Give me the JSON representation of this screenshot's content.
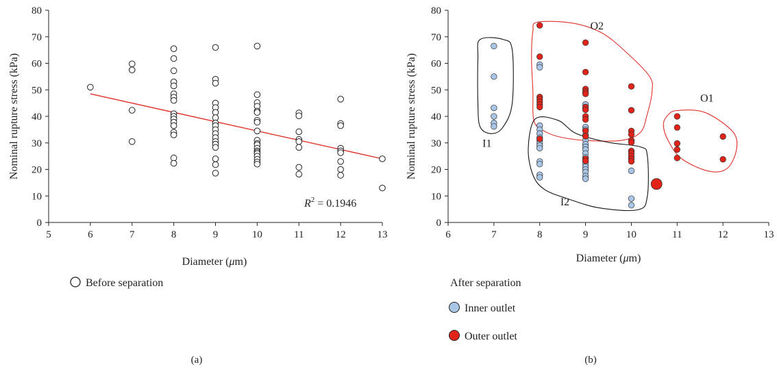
{
  "colors": {
    "axis": "#222222",
    "regression_line": "#e0302a",
    "inner_outlet": "#a9c6e6",
    "outer_outlet": "#e2231a",
    "red_region": "#e0302a",
    "black_region": "#111111"
  },
  "chart_data": [
    {
      "id": "a",
      "type": "scatter",
      "panel_label": "(a)",
      "xlabel_prefix": "Diameter (",
      "xlabel_mu": "μ",
      "xlabel_suffix": "m)",
      "ylabel": "Nominal rupture stress (kPa)",
      "xlim": [
        5,
        13
      ],
      "ylim": [
        0,
        80
      ],
      "xticks": [
        5,
        6,
        7,
        8,
        9,
        10,
        11,
        12,
        13
      ],
      "yticks": [
        0,
        10,
        20,
        30,
        40,
        50,
        60,
        70,
        80
      ],
      "legend": [
        "Before separation"
      ],
      "annotation_r2": {
        "symbol": "R",
        "exp": "2",
        "value": "= 0.1946"
      },
      "regression": {
        "x": [
          6,
          13
        ],
        "y": [
          48.5,
          24
        ]
      },
      "series": [
        {
          "name": "Before separation",
          "points": [
            [
              6,
              51
            ],
            [
              7,
              59.8
            ],
            [
              7,
              57.5
            ],
            [
              7,
              42.3
            ],
            [
              7,
              30.5
            ],
            [
              8,
              65.5
            ],
            [
              8,
              61.8
            ],
            [
              8,
              57.2
            ],
            [
              8,
              53
            ],
            [
              8,
              51.5
            ],
            [
              8,
              48.5
            ],
            [
              8,
              47.2
            ],
            [
              8,
              46
            ],
            [
              8,
              41
            ],
            [
              8,
              40
            ],
            [
              8,
              39
            ],
            [
              8,
              37.8
            ],
            [
              8,
              36.5
            ],
            [
              8,
              34
            ],
            [
              8,
              33
            ],
            [
              8,
              24.3
            ],
            [
              8,
              22.3
            ],
            [
              9,
              66
            ],
            [
              9,
              54
            ],
            [
              9,
              52.5
            ],
            [
              9,
              45
            ],
            [
              9,
              43.3
            ],
            [
              9,
              41.5
            ],
            [
              9,
              39.5
            ],
            [
              9,
              37.5
            ],
            [
              9,
              36.5
            ],
            [
              9,
              35
            ],
            [
              9,
              33.5
            ],
            [
              9,
              32
            ],
            [
              9,
              30.5
            ],
            [
              9,
              29.5
            ],
            [
              9,
              28.3
            ],
            [
              9,
              24
            ],
            [
              9,
              21.8
            ],
            [
              9,
              18.6
            ],
            [
              10,
              66.5
            ],
            [
              10,
              48.2
            ],
            [
              10,
              45.2
            ],
            [
              10,
              43.8
            ],
            [
              10,
              42
            ],
            [
              10,
              41.5
            ],
            [
              10,
              38.5
            ],
            [
              10,
              37.8
            ],
            [
              10,
              34.5
            ],
            [
              10,
              31
            ],
            [
              10,
              29.8
            ],
            [
              10,
              29.3
            ],
            [
              10,
              28
            ],
            [
              10,
              27
            ],
            [
              10,
              26.5
            ],
            [
              10,
              26
            ],
            [
              10,
              25
            ],
            [
              10,
              23.8
            ],
            [
              10,
              22.8
            ],
            [
              10,
              22
            ],
            [
              11,
              41.3
            ],
            [
              11,
              40.2
            ],
            [
              11,
              34.2
            ],
            [
              11,
              31.3
            ],
            [
              11,
              30.5
            ],
            [
              11,
              28.3
            ],
            [
              11,
              20.8
            ],
            [
              11,
              18.2
            ],
            [
              12,
              46.5
            ],
            [
              12,
              37.3
            ],
            [
              12,
              36.5
            ],
            [
              12,
              28
            ],
            [
              12,
              27
            ],
            [
              12,
              26.3
            ],
            [
              12,
              23
            ],
            [
              12,
              20
            ],
            [
              12,
              17.8
            ],
            [
              13,
              24
            ],
            [
              13,
              13
            ]
          ]
        }
      ]
    },
    {
      "id": "b",
      "type": "scatter",
      "panel_label": "(b)",
      "xlabel_prefix": "Diameter (",
      "xlabel_mu": "μ",
      "xlabel_suffix": "m)",
      "ylabel": "Nominal rupture stress (kPa)",
      "xlim": [
        6,
        13
      ],
      "ylim": [
        0,
        80
      ],
      "xticks": [
        6,
        7,
        8,
        9,
        10,
        11,
        12,
        13
      ],
      "yticks": [
        0,
        10,
        20,
        30,
        40,
        50,
        60,
        70,
        80
      ],
      "legend_title": "After separation",
      "legend": [
        "Inner outlet",
        "Outer outlet"
      ],
      "region_labels": [
        "O2",
        "O1",
        "I1",
        "I2"
      ],
      "series": [
        {
          "name": "Inner outlet",
          "points": [
            [
              7,
              66.5
            ],
            [
              7,
              55
            ],
            [
              7,
              43.2
            ],
            [
              7,
              40
            ],
            [
              7,
              37.5
            ],
            [
              7,
              36.2
            ],
            [
              8,
              59.5
            ],
            [
              8,
              58.5
            ],
            [
              8,
              36.5
            ],
            [
              8,
              35
            ],
            [
              8,
              33.5
            ],
            [
              8,
              32
            ],
            [
              8,
              31
            ],
            [
              8,
              30
            ],
            [
              8,
              29
            ],
            [
              8,
              28
            ],
            [
              8,
              23
            ],
            [
              8,
              22
            ],
            [
              8,
              18
            ],
            [
              8,
              17
            ],
            [
              9,
              44.5
            ],
            [
              9,
              43.5
            ],
            [
              9,
              42.5
            ],
            [
              9,
              36
            ],
            [
              9,
              35
            ],
            [
              9,
              33
            ],
            [
              9,
              31
            ],
            [
              9,
              29.5
            ],
            [
              9,
              28.5
            ],
            [
              9,
              27.5
            ],
            [
              9,
              26
            ],
            [
              9,
              24.5
            ],
            [
              9,
              23
            ],
            [
              9,
              22
            ],
            [
              9,
              21
            ],
            [
              9,
              20
            ],
            [
              9,
              19
            ],
            [
              9,
              17.5
            ],
            [
              9,
              16.5
            ],
            [
              10,
              19.5
            ],
            [
              10,
              9
            ],
            [
              10,
              6.5
            ]
          ]
        },
        {
          "name": "Outer outlet",
          "points": [
            [
              8,
              74.3
            ],
            [
              8,
              62.5
            ],
            [
              8,
              47.3
            ],
            [
              8,
              46.5
            ],
            [
              8,
              45.5
            ],
            [
              8,
              44.5
            ],
            [
              8,
              43.5
            ],
            [
              8,
              31.5
            ],
            [
              9,
              67.8
            ],
            [
              9,
              56.7
            ],
            [
              9,
              50.3
            ],
            [
              9,
              49.3
            ],
            [
              9,
              48.5
            ],
            [
              9,
              43.5
            ],
            [
              9,
              42.5
            ],
            [
              9,
              40
            ],
            [
              9,
              38.8
            ],
            [
              9,
              34.5
            ],
            [
              9,
              32.5
            ],
            [
              9,
              24
            ],
            [
              9,
              23.2
            ],
            [
              10,
              51.3
            ],
            [
              10,
              42.3
            ],
            [
              10,
              34.5
            ],
            [
              10,
              33.2
            ],
            [
              10,
              31
            ],
            [
              10,
              30.2
            ],
            [
              10,
              27
            ],
            [
              10,
              26.2
            ],
            [
              10,
              25
            ],
            [
              10,
              24
            ],
            [
              10,
              23
            ],
            [
              11,
              40
            ],
            [
              11,
              35.8
            ],
            [
              11,
              29.8
            ],
            [
              11,
              27.5
            ],
            [
              11,
              24.3
            ],
            [
              12,
              32.4
            ],
            [
              12,
              23.8
            ]
          ]
        }
      ],
      "outlier": {
        "series": "Outer outlet",
        "x": 10.55,
        "y": 14.5
      },
      "regions": [
        {
          "name": "O2",
          "color_key": "red_region",
          "label_at": [
            9.25,
            72.8
          ],
          "path": [
            [
              7.95,
              75.5
            ],
            [
              8.7,
              75.2
            ],
            [
              9.35,
              71.5
            ],
            [
              9.9,
              64
            ],
            [
              10.4,
              55
            ],
            [
              10.45,
              49
            ],
            [
              10.35,
              41
            ],
            [
              10.2,
              34
            ],
            [
              9.8,
              31
            ],
            [
              9.1,
              30.8
            ],
            [
              8.5,
              32
            ],
            [
              8.15,
              34
            ],
            [
              7.88,
              38
            ],
            [
              7.85,
              50
            ],
            [
              7.82,
              62
            ],
            [
              7.85,
              72
            ]
          ]
        },
        {
          "name": "O1",
          "color_key": "red_region",
          "label_at": [
            11.65,
            45.5
          ],
          "path": [
            [
              10.8,
              40.5
            ],
            [
              11.0,
              42.2
            ],
            [
              11.6,
              41.5
            ],
            [
              12.2,
              34.5
            ],
            [
              12.3,
              28
            ],
            [
              12.1,
              20.5
            ],
            [
              11.7,
              19.3
            ],
            [
              11.1,
              24
            ],
            [
              10.8,
              31
            ],
            [
              10.7,
              37
            ]
          ]
        },
        {
          "name": "I1",
          "color_key": "black_region",
          "label_at": [
            6.85,
            28.5
          ],
          "path": [
            [
              6.7,
              69
            ],
            [
              7.2,
              69
            ],
            [
              7.4,
              65
            ],
            [
              7.4,
              45
            ],
            [
              7.2,
              36
            ],
            [
              6.95,
              33.5
            ],
            [
              6.7,
              36
            ],
            [
              6.65,
              45
            ],
            [
              6.65,
              62
            ]
          ]
        },
        {
          "name": "I2",
          "color_key": "black_region",
          "label_at": [
            8.55,
            6.5
          ],
          "path": [
            [
              7.9,
              39
            ],
            [
              8.4,
              38.5
            ],
            [
              8.8,
              33.5
            ],
            [
              9.5,
              30.2
            ],
            [
              10.2,
              28.5
            ],
            [
              10.35,
              25
            ],
            [
              10.35,
              10
            ],
            [
              10.15,
              4.8
            ],
            [
              9.3,
              5.5
            ],
            [
              8.6,
              9
            ],
            [
              8.1,
              12.5
            ],
            [
              7.85,
              18
            ],
            [
              7.75,
              28
            ]
          ]
        }
      ]
    }
  ]
}
